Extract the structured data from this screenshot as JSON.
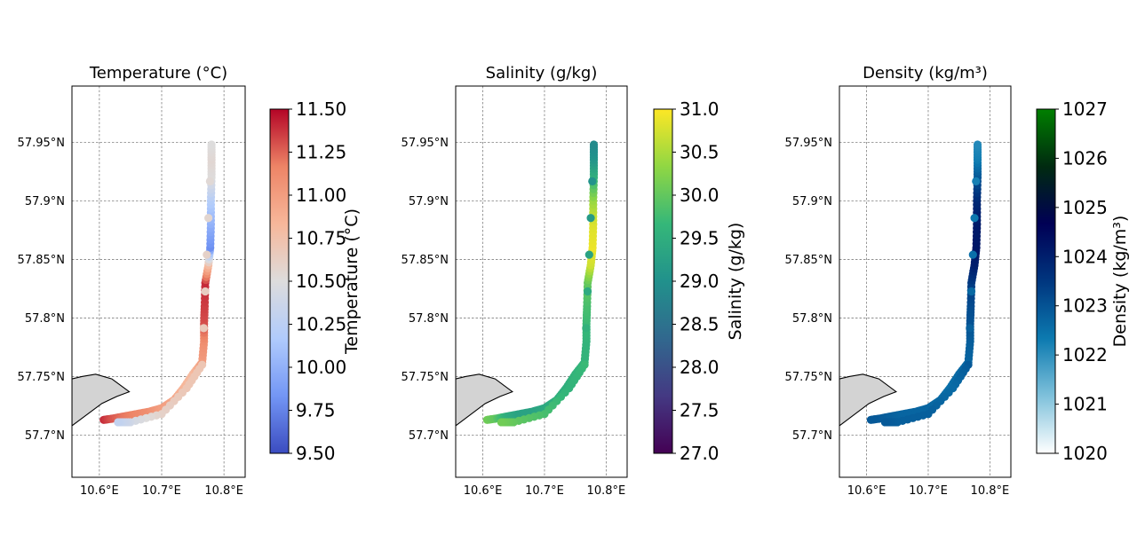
{
  "chart_data": [
    {
      "type": "scatter",
      "title": "Temperature (°C)",
      "xlabel": "",
      "ylabel": "",
      "x_ticks": [
        "10.6°E",
        "10.7°E",
        "10.8°E"
      ],
      "y_ticks": [
        "57.7°N",
        "57.75°N",
        "57.8°N",
        "57.85°N",
        "57.9°N",
        "57.95°N"
      ],
      "colorbar": {
        "label": "Temperature (°C)",
        "range": [
          9.5,
          11.5
        ],
        "ticks": [
          "9.50",
          "9.75",
          "10.00",
          "10.25",
          "10.50",
          "10.75",
          "11.00",
          "11.25",
          "11.50"
        ],
        "colormap": "coolwarm",
        "colors": [
          "#3b4cc0",
          "#7396f5",
          "#b0cbfc",
          "#dddcdc",
          "#f7b79a",
          "#ed8466",
          "#b40426"
        ]
      },
      "grid": true,
      "land_color": "#d3d3d3",
      "series": [
        {
          "variable": "temperature",
          "points": [
            {
              "lon": 10.607,
              "lat": 57.713,
              "v": 11.4
            },
            {
              "lon": 10.62,
              "lat": 57.714,
              "v": 11.3
            },
            {
              "lon": 10.64,
              "lat": 57.716,
              "v": 11.2
            },
            {
              "lon": 10.66,
              "lat": 57.718,
              "v": 11.15
            },
            {
              "lon": 10.68,
              "lat": 57.72,
              "v": 11.1
            },
            {
              "lon": 10.7,
              "lat": 57.723,
              "v": 11.0
            },
            {
              "lon": 10.72,
              "lat": 57.73,
              "v": 10.95
            },
            {
              "lon": 10.735,
              "lat": 57.74,
              "v": 10.85
            },
            {
              "lon": 10.75,
              "lat": 57.752,
              "v": 10.8
            },
            {
              "lon": 10.765,
              "lat": 57.762,
              "v": 11.0
            },
            {
              "lon": 10.768,
              "lat": 57.78,
              "v": 11.1
            },
            {
              "lon": 10.768,
              "lat": 57.795,
              "v": 11.3
            },
            {
              "lon": 10.769,
              "lat": 57.81,
              "v": 11.35
            },
            {
              "lon": 10.77,
              "lat": 57.83,
              "v": 11.4
            },
            {
              "lon": 10.775,
              "lat": 57.845,
              "v": 10.8
            },
            {
              "lon": 10.778,
              "lat": 57.86,
              "v": 9.8
            },
            {
              "lon": 10.779,
              "lat": 57.88,
              "v": 10.0
            },
            {
              "lon": 10.779,
              "lat": 57.9,
              "v": 10.2
            },
            {
              "lon": 10.78,
              "lat": 57.92,
              "v": 10.5
            },
            {
              "lon": 10.78,
              "lat": 57.935,
              "v": 10.55
            },
            {
              "lon": 10.78,
              "lat": 57.948,
              "v": 10.5
            },
            {
              "lon": 10.765,
              "lat": 57.76,
              "v": 10.7
            },
            {
              "lon": 10.74,
              "lat": 57.74,
              "v": 10.7
            },
            {
              "lon": 10.7,
              "lat": 57.718,
              "v": 10.6
            },
            {
              "lon": 10.65,
              "lat": 57.711,
              "v": 10.4
            },
            {
              "lon": 10.63,
              "lat": 57.711,
              "v": 10.3
            }
          ]
        }
      ]
    },
    {
      "type": "scatter",
      "title": "Salinity (g/kg)",
      "xlabel": "",
      "ylabel": "",
      "x_ticks": [
        "10.6°E",
        "10.7°E",
        "10.8°E"
      ],
      "y_ticks": [
        "57.7°N",
        "57.75°N",
        "57.8°N",
        "57.85°N",
        "57.9°N",
        "57.95°N"
      ],
      "colorbar": {
        "label": "Salinity (g/kg)",
        "range": [
          27.0,
          31.0
        ],
        "ticks": [
          "27.0",
          "27.5",
          "28.0",
          "28.5",
          "29.0",
          "29.5",
          "30.0",
          "30.5",
          "31.0"
        ],
        "colormap": "viridis",
        "colors": [
          "#440154",
          "#443983",
          "#31688e",
          "#21918c",
          "#35b779",
          "#90d743",
          "#fde725"
        ]
      },
      "grid": true,
      "land_color": "#d3d3d3",
      "series": [
        {
          "variable": "salinity",
          "points": [
            {
              "lon": 10.607,
              "lat": 57.713,
              "v": 30.1
            },
            {
              "lon": 10.62,
              "lat": 57.714,
              "v": 30.0
            },
            {
              "lon": 10.64,
              "lat": 57.716,
              "v": 29.5
            },
            {
              "lon": 10.66,
              "lat": 57.718,
              "v": 29.3
            },
            {
              "lon": 10.68,
              "lat": 57.72,
              "v": 29.3
            },
            {
              "lon": 10.7,
              "lat": 57.723,
              "v": 29.4
            },
            {
              "lon": 10.72,
              "lat": 57.73,
              "v": 29.5
            },
            {
              "lon": 10.735,
              "lat": 57.74,
              "v": 29.5
            },
            {
              "lon": 10.75,
              "lat": 57.752,
              "v": 29.6
            },
            {
              "lon": 10.765,
              "lat": 57.762,
              "v": 29.6
            },
            {
              "lon": 10.768,
              "lat": 57.78,
              "v": 29.6
            },
            {
              "lon": 10.768,
              "lat": 57.795,
              "v": 29.7
            },
            {
              "lon": 10.769,
              "lat": 57.81,
              "v": 29.8
            },
            {
              "lon": 10.77,
              "lat": 57.83,
              "v": 30.0
            },
            {
              "lon": 10.775,
              "lat": 57.845,
              "v": 30.7
            },
            {
              "lon": 10.778,
              "lat": 57.86,
              "v": 30.9
            },
            {
              "lon": 10.779,
              "lat": 57.88,
              "v": 30.8
            },
            {
              "lon": 10.779,
              "lat": 57.9,
              "v": 30.4
            },
            {
              "lon": 10.78,
              "lat": 57.92,
              "v": 29.6
            },
            {
              "lon": 10.78,
              "lat": 57.935,
              "v": 29.1
            },
            {
              "lon": 10.78,
              "lat": 57.948,
              "v": 28.9
            },
            {
              "lon": 10.765,
              "lat": 57.76,
              "v": 29.7
            },
            {
              "lon": 10.74,
              "lat": 57.74,
              "v": 29.6
            },
            {
              "lon": 10.7,
              "lat": 57.718,
              "v": 29.8
            },
            {
              "lon": 10.65,
              "lat": 57.711,
              "v": 30.0
            },
            {
              "lon": 10.63,
              "lat": 57.711,
              "v": 30.1
            }
          ]
        }
      ]
    },
    {
      "type": "scatter",
      "title": "Density (kg/m³)",
      "xlabel": "",
      "ylabel": "",
      "x_ticks": [
        "10.6°E",
        "10.7°E",
        "10.8°E"
      ],
      "y_ticks": [
        "57.7°N",
        "57.75°N",
        "57.8°N",
        "57.85°N",
        "57.9°N",
        "57.95°N"
      ],
      "colorbar": {
        "label": "Density (kg/m³)",
        "range": [
          1020,
          1027
        ],
        "ticks": [
          "1020",
          "1021",
          "1022",
          "1023",
          "1024",
          "1025",
          "1026",
          "1027"
        ],
        "colormap": "ocean_r",
        "colors": [
          "#ffffff",
          "#7fc1db",
          "#0c7ab0",
          "#00367f",
          "#000055",
          "#002a10",
          "#007f00"
        ]
      },
      "grid": true,
      "land_color": "#d3d3d3",
      "series": [
        {
          "variable": "density",
          "points": [
            {
              "lon": 10.607,
              "lat": 57.713,
              "v": 1022.9
            },
            {
              "lon": 10.62,
              "lat": 57.714,
              "v": 1022.9
            },
            {
              "lon": 10.64,
              "lat": 57.716,
              "v": 1022.8
            },
            {
              "lon": 10.66,
              "lat": 57.718,
              "v": 1022.7
            },
            {
              "lon": 10.68,
              "lat": 57.72,
              "v": 1022.7
            },
            {
              "lon": 10.7,
              "lat": 57.723,
              "v": 1022.7
            },
            {
              "lon": 10.72,
              "lat": 57.73,
              "v": 1022.6
            },
            {
              "lon": 10.735,
              "lat": 57.74,
              "v": 1022.5
            },
            {
              "lon": 10.75,
              "lat": 57.752,
              "v": 1022.6
            },
            {
              "lon": 10.765,
              "lat": 57.762,
              "v": 1022.7
            },
            {
              "lon": 10.768,
              "lat": 57.78,
              "v": 1022.8
            },
            {
              "lon": 10.768,
              "lat": 57.795,
              "v": 1023.0
            },
            {
              "lon": 10.769,
              "lat": 57.81,
              "v": 1023.1
            },
            {
              "lon": 10.77,
              "lat": 57.83,
              "v": 1023.4
            },
            {
              "lon": 10.775,
              "lat": 57.845,
              "v": 1024.0
            },
            {
              "lon": 10.778,
              "lat": 57.86,
              "v": 1024.2
            },
            {
              "lon": 10.779,
              "lat": 57.88,
              "v": 1024.1
            },
            {
              "lon": 10.779,
              "lat": 57.9,
              "v": 1023.8
            },
            {
              "lon": 10.78,
              "lat": 57.92,
              "v": 1023.0
            },
            {
              "lon": 10.78,
              "lat": 57.935,
              "v": 1022.3
            },
            {
              "lon": 10.78,
              "lat": 57.948,
              "v": 1022.1
            },
            {
              "lon": 10.765,
              "lat": 57.76,
              "v": 1022.9
            },
            {
              "lon": 10.74,
              "lat": 57.74,
              "v": 1022.6
            },
            {
              "lon": 10.7,
              "lat": 57.718,
              "v": 1022.8
            },
            {
              "lon": 10.65,
              "lat": 57.711,
              "v": 1022.8
            },
            {
              "lon": 10.63,
              "lat": 57.711,
              "v": 1022.9
            }
          ]
        }
      ]
    }
  ]
}
